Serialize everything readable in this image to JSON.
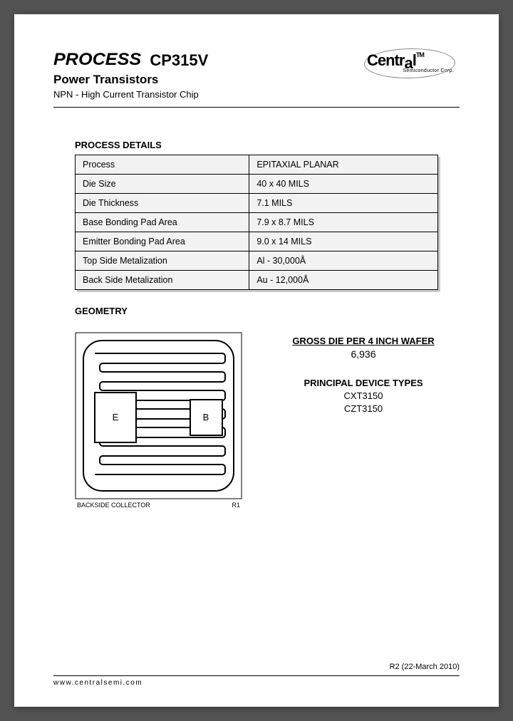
{
  "header": {
    "brand": "PROCESS",
    "partNumber": "CP315V",
    "subtitle1": "Power Transistors",
    "subtitle2": "NPN - High Current Transistor Chip",
    "logoName": "Central",
    "logoSub": "Semiconductor Corp.",
    "logoTM": "TM"
  },
  "processDetails": {
    "title": "PROCESS DETAILS",
    "rows": [
      {
        "label": "Process",
        "value": "EPITAXIAL PLANAR"
      },
      {
        "label": "Die Size",
        "value": "40 x 40 MILS"
      },
      {
        "label": "Die Thickness",
        "value": "7.1 MILS"
      },
      {
        "label": "Base Bonding Pad Area",
        "value": "7.9 x 8.7 MILS"
      },
      {
        "label": "Emitter Bonding Pad Area",
        "value": "9.0 x 14 MILS"
      },
      {
        "label": "Top Side Metalization",
        "value": "Al - 30,000Å"
      },
      {
        "label": "Back Side Metalization",
        "value": "Au - 12,000Å"
      }
    ]
  },
  "geometry": {
    "title": "GEOMETRY",
    "captionLeft": "BACKSIDE COLLECTOR",
    "captionRight": "R1",
    "padE": "E",
    "padB": "B",
    "grossDieTitle": "GROSS DIE PER 4 INCH WAFER",
    "grossDieValue": "6,936",
    "principalTitle": "PRINCIPAL DEVICE TYPES",
    "devices": [
      "CXT3150",
      "CZT3150"
    ],
    "colors": {
      "stroke": "#000000",
      "fill": "#ffffff"
    }
  },
  "footer": {
    "revision": "R2 (22-March 2010)",
    "url": "www.centralsemi.com"
  }
}
